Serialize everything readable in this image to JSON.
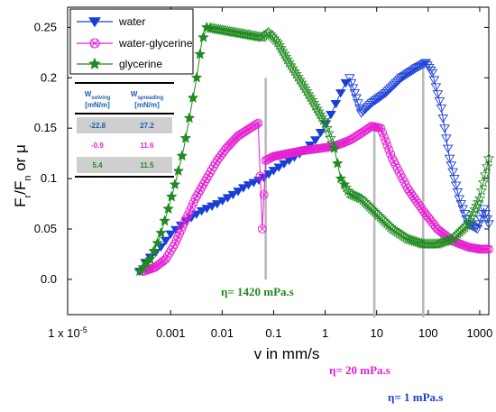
{
  "chart_data": {
    "type": "scatter",
    "xlabel": "v in mm/s",
    "ylabel": "Fr/Fn or μ",
    "xscale": "log",
    "xlim": [
      1e-05,
      1500
    ],
    "ylim": [
      -0.035,
      0.27
    ],
    "x_tick_labels": [
      "1 x 10-5",
      "0.001",
      "0.01",
      "0.1",
      "1",
      "10",
      "100",
      "1000"
    ],
    "x_tick_values": [
      1e-05,
      0.001,
      0.01,
      0.1,
      1,
      10,
      100,
      1000
    ],
    "y_tick_values": [
      0.0,
      0.05,
      0.1,
      0.15,
      0.2,
      0.25
    ],
    "y_tick_labels": [
      "0.0",
      "0.05",
      "0.1",
      "0.15",
      "0.2",
      "0.25"
    ],
    "legend_position": "top-center",
    "series": [
      {
        "name": "water",
        "color": "#1a3fd6",
        "marker": "filled-triangle-down + hollow-triangle-down",
        "points": [
          [
            0.00025,
            0.008
          ],
          [
            0.0003,
            0.015
          ],
          [
            0.0004,
            0.022
          ],
          [
            0.0006,
            0.03
          ],
          [
            0.001,
            0.045
          ],
          [
            0.002,
            0.058
          ],
          [
            0.004,
            0.068
          ],
          [
            0.008,
            0.075
          ],
          [
            0.015,
            0.083
          ],
          [
            0.03,
            0.093
          ],
          [
            0.06,
            0.1
          ],
          [
            0.1,
            0.108
          ],
          [
            0.2,
            0.118
          ],
          [
            0.4,
            0.128
          ],
          [
            0.7,
            0.14
          ],
          [
            1.2,
            0.16
          ],
          [
            2,
            0.185
          ],
          [
            2.5,
            0.195
          ],
          [
            3,
            0.2
          ],
          [
            5,
            0.165
          ],
          [
            8,
            0.175
          ],
          [
            15,
            0.185
          ],
          [
            30,
            0.2
          ],
          [
            60,
            0.21
          ],
          [
            90,
            0.215
          ],
          [
            120,
            0.205
          ],
          [
            180,
            0.17
          ],
          [
            260,
            0.12
          ],
          [
            400,
            0.08
          ],
          [
            600,
            0.055
          ],
          [
            900,
            0.05
          ],
          [
            1200,
            0.07
          ],
          [
            1500,
            0.055
          ]
        ]
      },
      {
        "name": "water-glycerine",
        "color": "#e61ed2",
        "marker": "circle-cross",
        "points": [
          [
            0.0003,
            0.008
          ],
          [
            0.0005,
            0.012
          ],
          [
            0.0008,
            0.02
          ],
          [
            0.0012,
            0.035
          ],
          [
            0.002,
            0.06
          ],
          [
            0.003,
            0.08
          ],
          [
            0.005,
            0.1
          ],
          [
            0.008,
            0.118
          ],
          [
            0.012,
            0.13
          ],
          [
            0.02,
            0.142
          ],
          [
            0.035,
            0.15
          ],
          [
            0.05,
            0.155
          ],
          [
            0.06,
            0.05
          ],
          [
            0.07,
            0.118
          ],
          [
            0.1,
            0.122
          ],
          [
            0.2,
            0.125
          ],
          [
            0.4,
            0.128
          ],
          [
            0.8,
            0.13
          ],
          [
            1.5,
            0.132
          ],
          [
            3,
            0.138
          ],
          [
            5,
            0.145
          ],
          [
            8,
            0.152
          ],
          [
            12,
            0.15
          ],
          [
            20,
            0.12
          ],
          [
            40,
            0.09
          ],
          [
            80,
            0.068
          ],
          [
            150,
            0.05
          ],
          [
            300,
            0.038
          ],
          [
            600,
            0.032
          ],
          [
            1000,
            0.03
          ],
          [
            1500,
            0.03
          ]
        ]
      },
      {
        "name": "glycerine",
        "color": "#1f8a1f",
        "marker": "filled-star + hollow-star",
        "points": [
          [
            0.00025,
            0.008
          ],
          [
            0.0004,
            0.02
          ],
          [
            0.0006,
            0.04
          ],
          [
            0.0009,
            0.07
          ],
          [
            0.0013,
            0.1
          ],
          [
            0.0018,
            0.13
          ],
          [
            0.0025,
            0.17
          ],
          [
            0.0032,
            0.2
          ],
          [
            0.004,
            0.235
          ],
          [
            0.005,
            0.25
          ],
          [
            0.06,
            0.24
          ],
          [
            0.08,
            0.245
          ],
          [
            0.12,
            0.235
          ],
          [
            0.2,
            0.215
          ],
          [
            0.35,
            0.195
          ],
          [
            0.6,
            0.175
          ],
          [
            1,
            0.155
          ],
          [
            1.5,
            0.13
          ],
          [
            2,
            0.1
          ],
          [
            3,
            0.085
          ],
          [
            5,
            0.08
          ],
          [
            10,
            0.065
          ],
          [
            20,
            0.05
          ],
          [
            40,
            0.04
          ],
          [
            80,
            0.035
          ],
          [
            150,
            0.035
          ],
          [
            300,
            0.04
          ],
          [
            600,
            0.055
          ],
          [
            1000,
            0.08
          ],
          [
            1500,
            0.12
          ]
        ]
      }
    ],
    "annotations": [
      {
        "text": "η= 1420 mPa.s",
        "x": 0.07,
        "color": "#1f8a1f"
      },
      {
        "text": "η= 20 mPa.s",
        "x": 9,
        "color": "#e61ed2"
      },
      {
        "text": "η= 1 mPa.s",
        "x": 80,
        "color": "#1a3fd6"
      }
    ],
    "inset_table": {
      "header": [
        "W",
        "solving",
        "[mN/m]",
        "W",
        "spreading",
        "[mN/m]"
      ],
      "rows": [
        {
          "a": "-22.8",
          "b": "27.2",
          "color": "#1f5fb0",
          "shade": true
        },
        {
          "a": "-0.9",
          "b": "11.6",
          "color": "#e61ed2",
          "shade": false
        },
        {
          "a": "5.4",
          "b": "11.5",
          "color": "#1f8a1f",
          "shade": true
        }
      ]
    }
  }
}
